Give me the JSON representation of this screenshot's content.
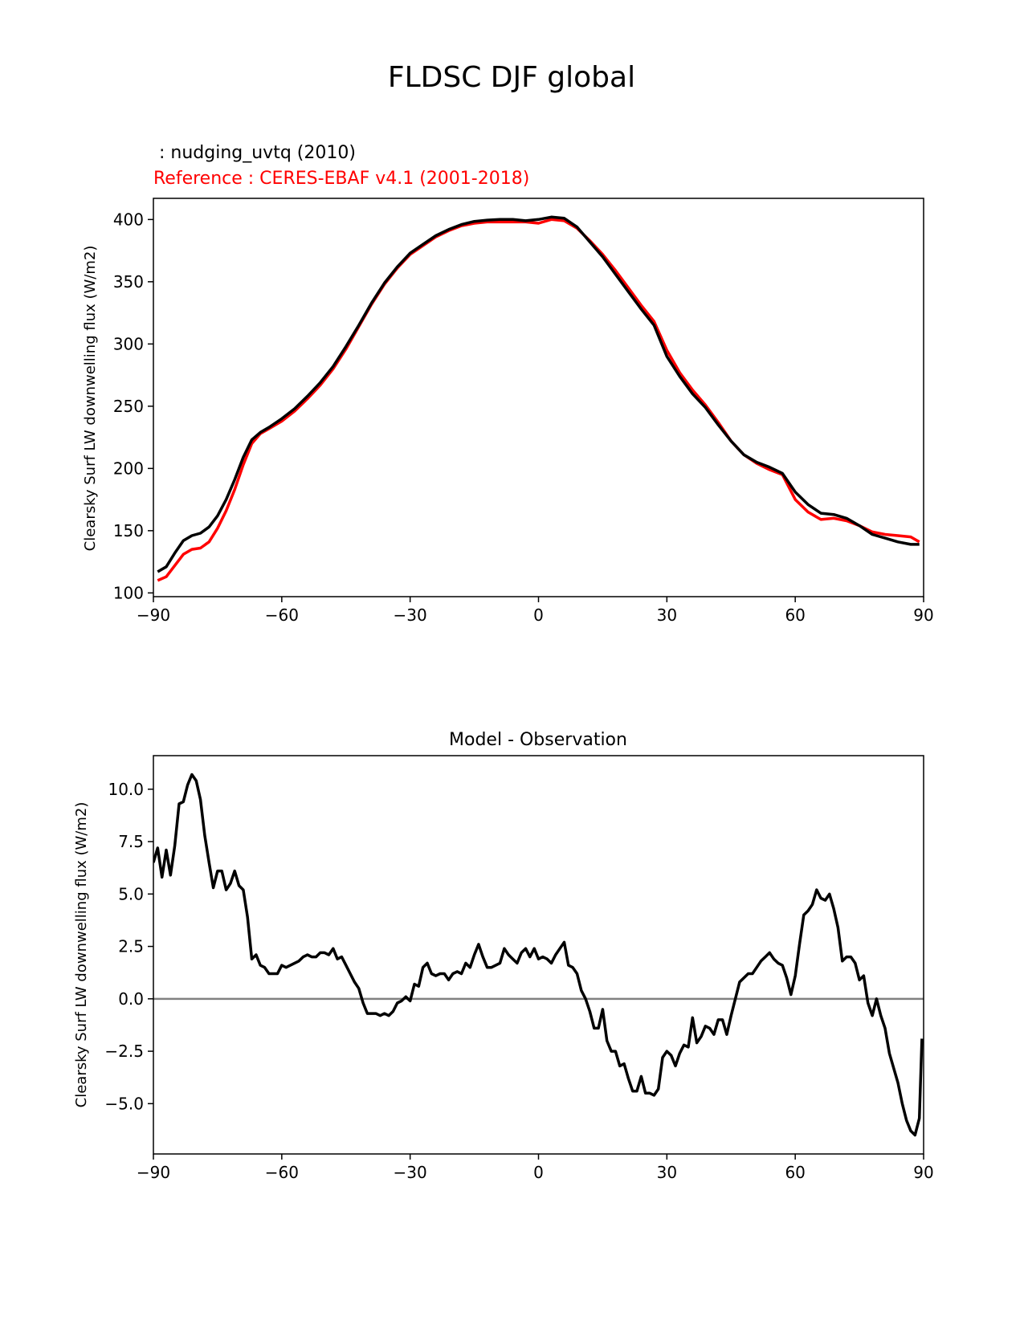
{
  "figure_title": "FLDSC DJF global",
  "chart_data": [
    {
      "type": "line",
      "test_label": " : nudging_uvtq (2010)",
      "reference_label": "Reference : CERES-EBAF v4.1 (2001-2018)",
      "xlabel": "",
      "ylabel": "Clearsky Surf LW downwelling flux (W/m2)",
      "xlim": [
        -90,
        90
      ],
      "ylim": [
        97,
        417
      ],
      "xticks": [
        "−90",
        "−60",
        "−30",
        "0",
        "30",
        "60",
        "90"
      ],
      "yticks": [
        "100",
        "150",
        "200",
        "250",
        "300",
        "350",
        "400"
      ],
      "colors": {
        "test": "#000000",
        "reference": "#ff0000"
      },
      "series": [
        {
          "role": "test",
          "x": [
            -89,
            -87,
            -85,
            -83,
            -81,
            -79,
            -77,
            -75,
            -73,
            -71,
            -69,
            -67,
            -65,
            -63,
            -60,
            -57,
            -54,
            -51,
            -48,
            -45,
            -42,
            -39,
            -36,
            -33,
            -30,
            -27,
            -24,
            -21,
            -18,
            -15,
            -12,
            -9,
            -6,
            -3,
            0,
            3,
            6,
            9,
            12,
            15,
            18,
            21,
            24,
            27,
            30,
            33,
            36,
            39,
            42,
            45,
            48,
            51,
            54,
            57,
            60,
            63,
            66,
            69,
            72,
            75,
            78,
            81,
            84,
            87,
            89
          ],
          "y": [
            117,
            121,
            132,
            142,
            146,
            148,
            153,
            162,
            175,
            191,
            209,
            223,
            229,
            233,
            240,
            248,
            258,
            269,
            282,
            298,
            315,
            333,
            349,
            362,
            373,
            380,
            387,
            392,
            396,
            398.5,
            399.5,
            400,
            400,
            399,
            400,
            402,
            401,
            394,
            382,
            370,
            356,
            342,
            328,
            315,
            290,
            274,
            260,
            249,
            235,
            222,
            211,
            205,
            201,
            196,
            181,
            171,
            164,
            163,
            160,
            154,
            147,
            144,
            141,
            139,
            139
          ]
        },
        {
          "role": "reference",
          "x": [
            -89,
            -87,
            -85,
            -83,
            -81,
            -79,
            -77,
            -75,
            -73,
            -71,
            -69,
            -67,
            -65,
            -63,
            -60,
            -57,
            -54,
            -51,
            -48,
            -45,
            -42,
            -39,
            -36,
            -33,
            -30,
            -27,
            -24,
            -21,
            -18,
            -15,
            -12,
            -9,
            -6,
            -3,
            0,
            3,
            6,
            9,
            12,
            15,
            18,
            21,
            24,
            27,
            30,
            33,
            36,
            39,
            42,
            45,
            48,
            51,
            54,
            57,
            60,
            63,
            66,
            69,
            72,
            75,
            78,
            81,
            84,
            87,
            89
          ],
          "y": [
            110,
            113,
            122,
            131,
            135,
            136,
            141,
            152,
            166,
            183,
            203,
            220,
            228,
            232,
            238,
            246,
            256,
            267,
            280,
            296,
            314,
            332,
            348,
            361,
            372,
            379,
            386,
            391,
            395,
            397,
            398,
            398,
            398,
            398,
            397,
            400,
            399,
            393,
            383,
            372,
            359,
            345,
            331,
            318,
            295,
            277,
            263,
            251,
            237,
            222,
            211,
            204,
            199,
            195,
            175,
            165,
            159,
            160,
            158,
            154,
            149,
            147,
            146,
            145,
            141
          ]
        }
      ]
    },
    {
      "type": "line",
      "title": "Model - Observation",
      "xlabel": "",
      "ylabel": "Clearsky Surf LW downwelling flux (W/m2)",
      "xlim": [
        -90,
        90
      ],
      "ylim": [
        -7.4,
        11.6
      ],
      "xticks": [
        "−90",
        "−60",
        "−30",
        "0",
        "30",
        "60",
        "90"
      ],
      "yticks": [
        "10.0",
        "7.5",
        "5.0",
        "2.5",
        "0.0",
        "−2.5",
        "−5.0"
      ],
      "zero_line_color": "#808080",
      "series": [
        {
          "role": "difference",
          "x": [
            -90,
            -89,
            -88,
            -87,
            -86,
            -85,
            -84,
            -83,
            -82,
            -81,
            -80,
            -79,
            -78,
            -77,
            -76,
            -75,
            -74,
            -73,
            -72,
            -71,
            -70,
            -69,
            -68,
            -67,
            -66,
            -65,
            -64,
            -63,
            -62,
            -61,
            -60,
            -59,
            -58,
            -57,
            -56,
            -55,
            -54,
            -53,
            -52,
            -51,
            -50,
            -49,
            -48,
            -47,
            -46,
            -45,
            -44,
            -43,
            -42,
            -41,
            -40,
            -39,
            -38,
            -37,
            -36,
            -35,
            -34,
            -33,
            -32,
            -31,
            -30,
            -29,
            -28,
            -27,
            -26,
            -25,
            -24,
            -23,
            -22,
            -21,
            -20,
            -19,
            -18,
            -17,
            -16,
            -15,
            -14,
            -13,
            -12,
            -11,
            -10,
            -9,
            -8,
            -7,
            -6,
            -5,
            -4,
            -3,
            -2,
            -1,
            0,
            1,
            2,
            3,
            4,
            5,
            6,
            7,
            8,
            9,
            10,
            11,
            12,
            13,
            14,
            15,
            16,
            17,
            18,
            19,
            20,
            21,
            22,
            23,
            24,
            25,
            26,
            27,
            28,
            29,
            30,
            31,
            32,
            33,
            34,
            35,
            36,
            37,
            38,
            39,
            40,
            41,
            42,
            43,
            44,
            45,
            46,
            47,
            48,
            49,
            50,
            51,
            52,
            53,
            54,
            55,
            56,
            57,
            58,
            59,
            60,
            61,
            62,
            63,
            64,
            65,
            66,
            67,
            68,
            69,
            70,
            71,
            72,
            73,
            74,
            75,
            76,
            77,
            78,
            79,
            80,
            81,
            82,
            83,
            84,
            85,
            86,
            87,
            88,
            89,
            89.6
          ],
          "y": [
            6.5,
            7.2,
            5.8,
            7.1,
            5.9,
            7.3,
            9.3,
            9.4,
            10.2,
            10.7,
            10.4,
            9.5,
            7.8,
            6.5,
            5.3,
            6.1,
            6.1,
            5.2,
            5.5,
            6.1,
            5.4,
            5.2,
            3.9,
            1.9,
            2.1,
            1.6,
            1.5,
            1.2,
            1.2,
            1.2,
            1.6,
            1.5,
            1.6,
            1.7,
            1.8,
            2.0,
            2.1,
            2.0,
            2.0,
            2.2,
            2.2,
            2.1,
            2.4,
            1.9,
            2.0,
            1.6,
            1.2,
            0.8,
            0.5,
            -0.2,
            -0.7,
            -0.7,
            -0.7,
            -0.8,
            -0.7,
            -0.8,
            -0.6,
            -0.2,
            -0.1,
            0.1,
            -0.1,
            0.7,
            0.6,
            1.5,
            1.7,
            1.2,
            1.1,
            1.2,
            1.2,
            0.9,
            1.2,
            1.3,
            1.2,
            1.7,
            1.5,
            2.1,
            2.6,
            2.0,
            1.5,
            1.5,
            1.6,
            1.7,
            2.4,
            2.1,
            1.9,
            1.7,
            2.2,
            2.4,
            2.0,
            2.4,
            1.9,
            2.0,
            1.9,
            1.7,
            2.1,
            2.4,
            2.7,
            1.6,
            1.5,
            1.2,
            0.4,
            0.0,
            -0.6,
            -1.4,
            -1.4,
            -0.5,
            -2.0,
            -2.5,
            -2.5,
            -3.2,
            -3.1,
            -3.8,
            -4.4,
            -4.4,
            -3.7,
            -4.5,
            -4.5,
            -4.6,
            -4.3,
            -2.8,
            -2.5,
            -2.7,
            -3.2,
            -2.6,
            -2.2,
            -2.3,
            -0.9,
            -2.1,
            -1.8,
            -1.3,
            -1.4,
            -1.7,
            -1.0,
            -1.0,
            -1.7,
            -0.8,
            0.0,
            0.8,
            1.0,
            1.2,
            1.2,
            1.5,
            1.8,
            2.0,
            2.2,
            1.9,
            1.7,
            1.6,
            1.0,
            0.2,
            1.1,
            2.6,
            4.0,
            4.2,
            4.5,
            5.2,
            4.8,
            4.7,
            5.0,
            4.3,
            3.4,
            1.8,
            2.0,
            2.0,
            1.7,
            0.9,
            1.1,
            -0.2,
            -0.8,
            0.0,
            -0.8,
            -1.4,
            -2.6,
            -3.3,
            -4.0,
            -5.0,
            -5.8,
            -6.3,
            -6.5,
            -5.7,
            -1.9
          ]
        }
      ]
    }
  ]
}
